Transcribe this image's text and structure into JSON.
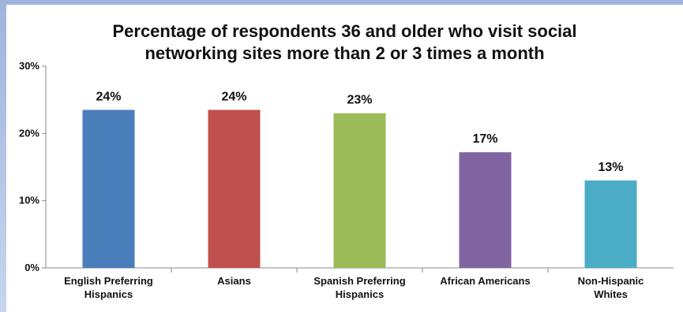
{
  "chart_data": {
    "type": "bar",
    "title_lines": [
      "Percentage of  respondents 36 and older who visit social",
      "networking sites more than 2 or 3 times a month"
    ],
    "categories": [
      [
        "English Preferring",
        "Hispanics"
      ],
      [
        "Asians"
      ],
      [
        "Spanish Preferring",
        "Hispanics"
      ],
      [
        "African Americans"
      ],
      [
        "Non-Hispanic",
        "Whites"
      ]
    ],
    "values": [
      23.5,
      23.5,
      23,
      17.2,
      13
    ],
    "data_labels": [
      "24%",
      "24%",
      "23%",
      "17%",
      "13%"
    ],
    "colors": [
      "#4a7ebb",
      "#c0504d",
      "#9bbb59",
      "#8064a2",
      "#4bacc6"
    ],
    "ylim": [
      0,
      30
    ],
    "yticks": [
      0,
      10,
      20,
      30
    ],
    "ytick_labels": [
      "0%",
      "10%",
      "20%",
      "30%"
    ],
    "xlabel": "",
    "ylabel": "",
    "grid": false,
    "legend": "none"
  }
}
